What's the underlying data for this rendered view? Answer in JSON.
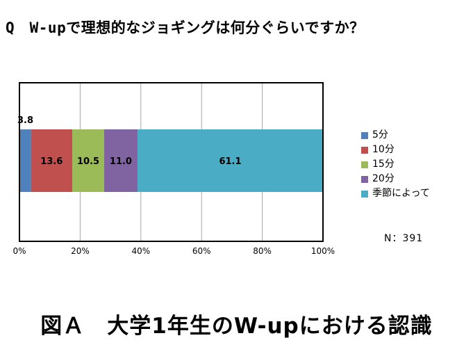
{
  "question": "Q　W-upで理想的なジョギングは何分ぐらいですか？",
  "caption": "図Ａ　大学1年生のW-upにおける認識",
  "note": "N：391",
  "chart_data": {
    "type": "bar",
    "orientation": "horizontal",
    "stacked": true,
    "percent": true,
    "categories": [
      ""
    ],
    "series": [
      {
        "name": "5分",
        "values": [
          3.8
        ],
        "color": "#4f81bd",
        "label": "3.8"
      },
      {
        "name": "10分",
        "values": [
          13.6
        ],
        "color": "#c0504d",
        "label": "13.6"
      },
      {
        "name": "15分",
        "values": [
          10.5
        ],
        "color": "#9bbb59",
        "label": "10.5"
      },
      {
        "name": "20分",
        "values": [
          11.0
        ],
        "color": "#8064a2",
        "label": "11.0"
      },
      {
        "name": "季節によって",
        "values": [
          61.1
        ],
        "color": "#4bacc6",
        "label": "61.1"
      }
    ],
    "xlim": [
      0,
      100
    ],
    "xticks": [
      "0%",
      "20%",
      "40%",
      "60%",
      "80%",
      "100%"
    ],
    "grid": true,
    "legend_position": "right"
  }
}
